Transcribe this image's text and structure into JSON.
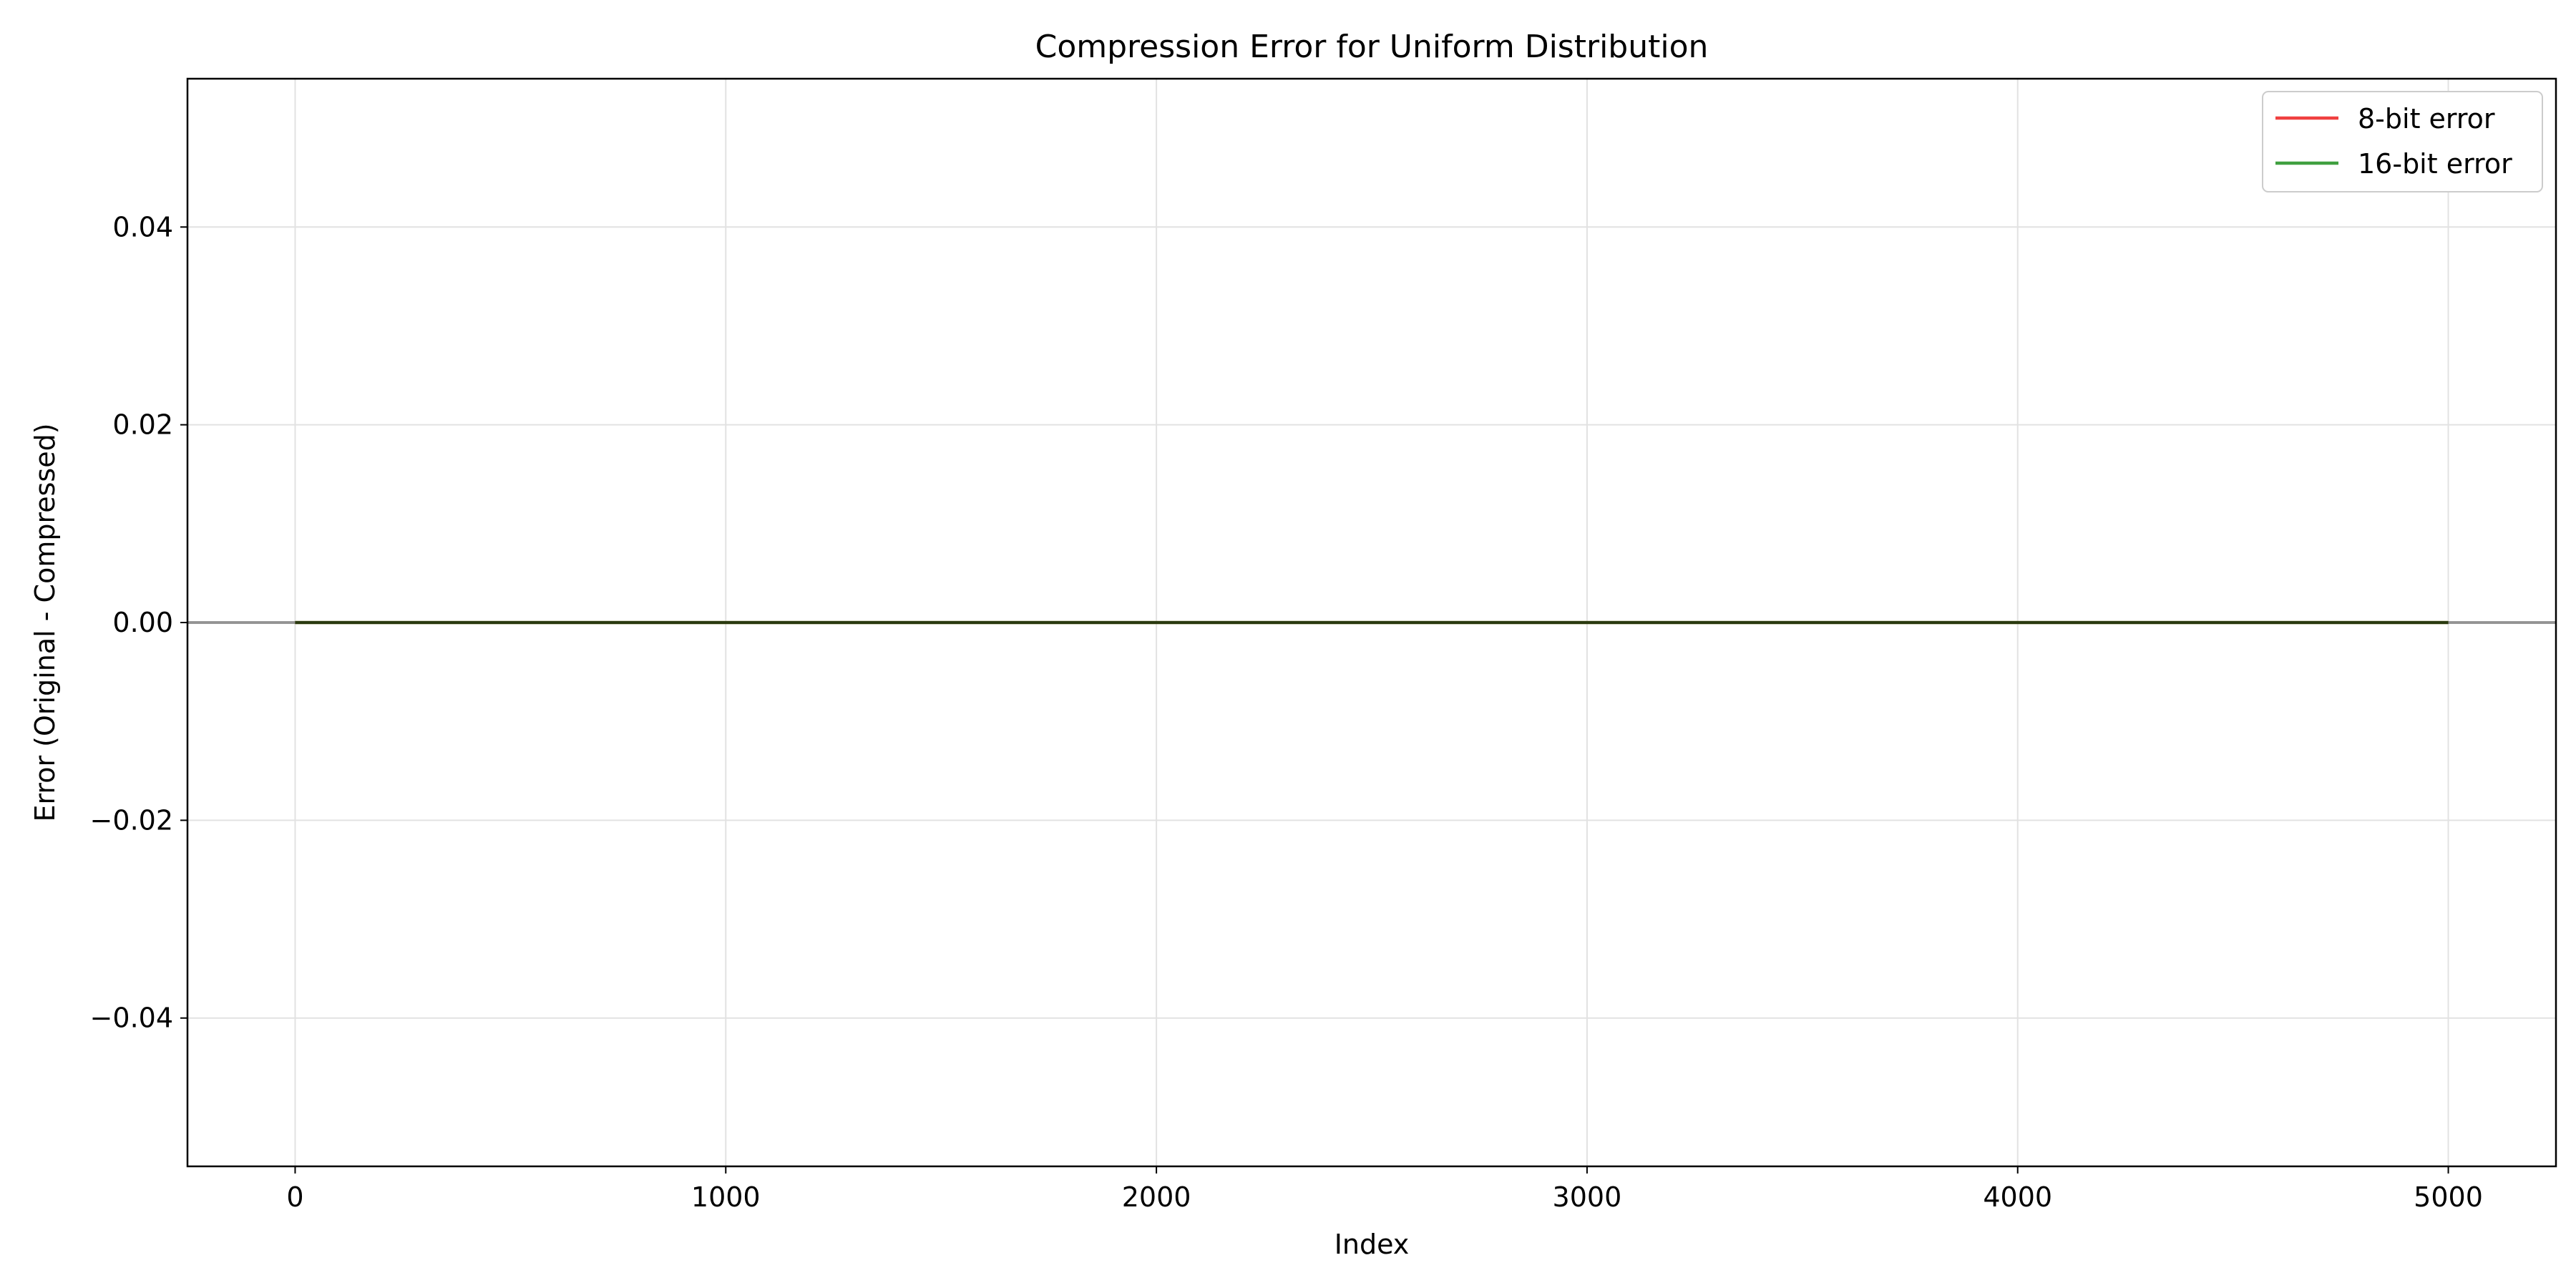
{
  "chart_data": {
    "type": "line",
    "title": "Compression Error for Uniform Distribution",
    "xlabel": "Index",
    "ylabel": "Error (Original - Compressed)",
    "xlim": [
      -250,
      5250
    ],
    "ylim": [
      -0.055,
      0.055
    ],
    "x_ticks": [
      0,
      1000,
      2000,
      3000,
      4000,
      5000
    ],
    "x_tick_labels": [
      "0",
      "1000",
      "2000",
      "3000",
      "4000",
      "5000"
    ],
    "y_ticks": [
      0.04,
      0.02,
      0.0,
      -0.02,
      -0.04
    ],
    "y_tick_labels": [
      "0.04",
      "0.02",
      "0.00",
      "−0.02",
      "−0.04"
    ],
    "grid": true,
    "reference_line": {
      "y": 0,
      "color": "#808080"
    },
    "legend_position": "top-right",
    "series": [
      {
        "name": "8-bit error",
        "color": "#f04040",
        "x": [
          0,
          5000
        ],
        "y": [
          0,
          0
        ]
      },
      {
        "name": "16-bit error",
        "color": "#40a040",
        "x": [
          0,
          5000
        ],
        "y": [
          0,
          0
        ]
      }
    ]
  }
}
